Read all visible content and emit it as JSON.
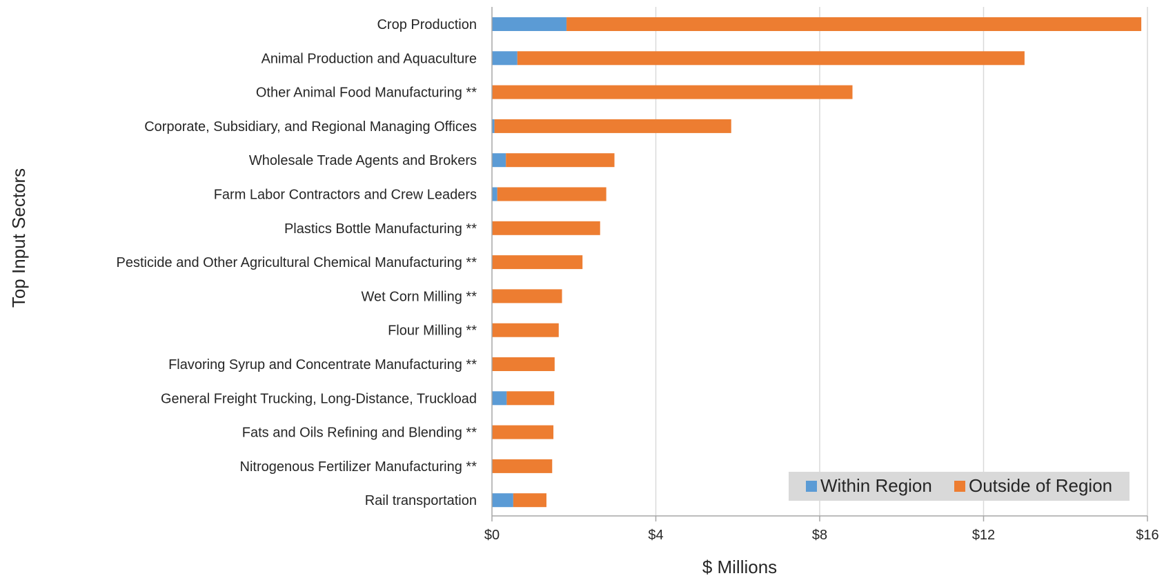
{
  "chart_data": {
    "type": "bar",
    "orientation": "horizontal",
    "stacked": true,
    "categories": [
      "Crop Production",
      "Animal Production and Aquaculture",
      "Other Animal Food Manufacturing **",
      "Corporate, Subsidiary, and Regional Managing Offices",
      "Wholesale Trade Agents and Brokers",
      "Farm Labor Contractors and Crew Leaders",
      "Plastics Bottle Manufacturing **",
      "Pesticide and Other Agricultural Chemical Manufacturing **",
      "Wet Corn Milling **",
      "Flour Milling **",
      "Flavoring Syrup and Concentrate Manufacturing **",
      "General Freight Trucking, Long-Distance, Truckload",
      "Fats and Oils Refining and Blending **",
      "Nitrogenous Fertilizer Manufacturing **",
      "Rail transportation"
    ],
    "series": [
      {
        "name": "Within Region",
        "color": "#5b9bd5",
        "values": [
          1.82,
          0.62,
          0,
          0.06,
          0.34,
          0.13,
          0,
          0,
          0,
          0,
          0,
          0.36,
          0,
          0,
          0.52
        ]
      },
      {
        "name": "Outside of Region",
        "color": "#ed7d31",
        "values": [
          14.03,
          12.38,
          8.8,
          5.78,
          2.65,
          2.66,
          2.64,
          2.21,
          1.71,
          1.63,
          1.53,
          1.16,
          1.5,
          1.47,
          0.81
        ]
      }
    ],
    "xlim": [
      0,
      16
    ],
    "xticks": [
      0,
      4,
      8,
      12,
      16
    ],
    "xtick_labels": [
      "$0",
      "$4",
      "$8",
      "$12",
      "$16"
    ],
    "xlabel": "$ Millions",
    "ylabel": "Top Input Sectors",
    "title": "",
    "grid": "vertical",
    "legend_position": "bottom-right",
    "colors": {
      "grid": "#d9d9d9",
      "axis": "#a6a6a6",
      "legend_bg": "#d9d9d9",
      "text": "#262626"
    }
  }
}
